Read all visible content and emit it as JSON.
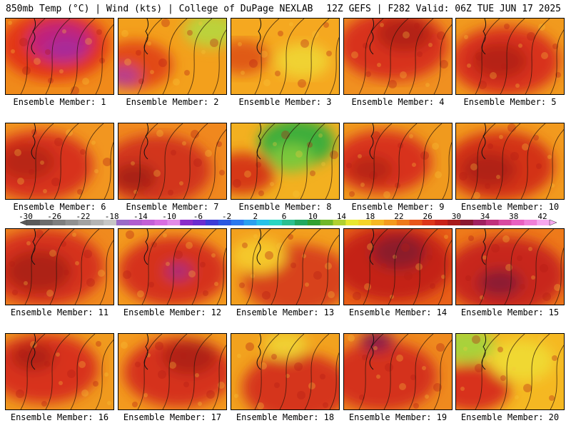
{
  "header": {
    "left": "850mb Temp (°C) | Wind (kts) | College of DuPage NEXLAB",
    "right": "12Z GEFS | F282 Valid: 06Z TUE JUN 17 2025"
  },
  "members": [
    {
      "label": "Ensemble Member: 1",
      "base": "#f08a1a",
      "blobs": [
        [
          "#e23512",
          0.45,
          0.35,
          0.5
        ],
        [
          "#c0247c",
          0.5,
          0.3,
          0.3
        ],
        [
          "#a82a9a",
          0.55,
          0.4,
          0.18
        ]
      ],
      "green": 0
    },
    {
      "label": "Ensemble Member: 2",
      "base": "#f3a01c",
      "blobs": [
        [
          "#e24a14",
          0.15,
          0.6,
          0.35
        ],
        [
          "#b73c8e",
          0.05,
          0.75,
          0.15
        ],
        [
          "#bcd23a",
          0.85,
          0.15,
          0.25
        ]
      ],
      "green": 0
    },
    {
      "label": "Ensemble Member: 3",
      "base": "#f5a820",
      "blobs": [
        [
          "#e05a14",
          0.1,
          0.5,
          0.25
        ],
        [
          "#f0d232",
          0.65,
          0.55,
          0.25
        ]
      ],
      "green": 0
    },
    {
      "label": "Ensemble Member: 4",
      "base": "#f09020",
      "blobs": [
        [
          "#d8301a",
          0.45,
          0.35,
          0.5
        ],
        [
          "#b32016",
          0.55,
          0.2,
          0.25
        ]
      ],
      "green": 0
    },
    {
      "label": "Ensemble Member: 5",
      "base": "#f19a1e",
      "blobs": [
        [
          "#d8331a",
          0.45,
          0.55,
          0.5
        ],
        [
          "#b52218",
          0.4,
          0.55,
          0.25
        ]
      ],
      "green": 0
    },
    {
      "label": "Ensemble Member: 6",
      "base": "#f29620",
      "blobs": [
        [
          "#d7331a",
          0.3,
          0.55,
          0.5
        ],
        [
          "#b82619",
          0.2,
          0.5,
          0.25
        ]
      ],
      "green": 0
    },
    {
      "label": "Ensemble Member: 7",
      "base": "#f0881e",
      "blobs": [
        [
          "#d2361a",
          0.35,
          0.6,
          0.5
        ],
        [
          "#a82014",
          0.15,
          0.7,
          0.2
        ]
      ],
      "green": 0
    },
    {
      "label": "Ensemble Member: 8",
      "base": "#f3b020",
      "blobs": [
        [
          "#d63818",
          0.1,
          0.65,
          0.3
        ],
        [
          "#3cae3a",
          0.6,
          0.25,
          0.35
        ],
        [
          "#7cc83a",
          0.55,
          0.45,
          0.2
        ]
      ],
      "green": 1
    },
    {
      "label": "Ensemble Member: 9",
      "base": "#f09a1e",
      "blobs": [
        [
          "#d8301a",
          0.35,
          0.5,
          0.45
        ],
        [
          "#b82818",
          0.25,
          0.6,
          0.2
        ]
      ],
      "green": 0
    },
    {
      "label": "Ensemble Member: 10",
      "base": "#f29a1e",
      "blobs": [
        [
          "#d33218",
          0.4,
          0.55,
          0.5
        ],
        [
          "#b02216",
          0.3,
          0.6,
          0.25
        ]
      ],
      "green": 0
    },
    {
      "label": "Ensemble Member: 11",
      "base": "#f08a1e",
      "blobs": [
        [
          "#d5331a",
          0.35,
          0.5,
          0.55
        ],
        [
          "#ad2218",
          0.3,
          0.55,
          0.3
        ]
      ],
      "green": 0
    },
    {
      "label": "Ensemble Member: 12",
      "base": "#f39a1e",
      "blobs": [
        [
          "#d5331a",
          0.5,
          0.55,
          0.5
        ],
        [
          "#a82a7a",
          0.55,
          0.55,
          0.12
        ]
      ],
      "green": 0
    },
    {
      "label": "Ensemble Member: 13",
      "base": "#f3a01e",
      "blobs": [
        [
          "#d8421a",
          0.6,
          0.65,
          0.5
        ],
        [
          "#f5c82a",
          0.25,
          0.35,
          0.25
        ]
      ],
      "green": 0
    },
    {
      "label": "Ensemble Member: 14",
      "base": "#e86018",
      "blobs": [
        [
          "#c42418",
          0.45,
          0.45,
          0.55
        ],
        [
          "#8c1c2a",
          0.5,
          0.3,
          0.25
        ]
      ],
      "green": 0
    },
    {
      "label": "Ensemble Member: 15",
      "base": "#ee7a1a",
      "blobs": [
        [
          "#c8261a",
          0.45,
          0.6,
          0.55
        ],
        [
          "#8c1a30",
          0.4,
          0.7,
          0.2
        ]
      ],
      "green": 0
    },
    {
      "label": "Ensemble Member: 16",
      "base": "#f09a1e",
      "blobs": [
        [
          "#d8331a",
          0.35,
          0.45,
          0.5
        ],
        [
          "#b02418",
          0.25,
          0.3,
          0.2
        ]
      ],
      "green": 0
    },
    {
      "label": "Ensemble Member: 17",
      "base": "#f39a1e",
      "blobs": [
        [
          "#d5331a",
          0.55,
          0.5,
          0.5
        ],
        [
          "#b02016",
          0.65,
          0.3,
          0.25
        ]
      ],
      "green": 0
    },
    {
      "label": "Ensemble Member: 18",
      "base": "#f2a21e",
      "blobs": [
        [
          "#d5361a",
          0.6,
          0.7,
          0.5
        ],
        [
          "#f0d030",
          0.5,
          0.15,
          0.2
        ]
      ],
      "green": 0
    },
    {
      "label": "Ensemble Member: 19",
      "base": "#ef8a1e",
      "blobs": [
        [
          "#d4301a",
          0.35,
          0.55,
          0.5
        ],
        [
          "#8a1c4a",
          0.3,
          0.1,
          0.15
        ]
      ],
      "green": 0
    },
    {
      "label": "Ensemble Member: 20",
      "base": "#f5b822",
      "blobs": [
        [
          "#d8331a",
          0.15,
          0.7,
          0.35
        ],
        [
          "#a8d23a",
          0.1,
          0.15,
          0.25
        ],
        [
          "#f0d830",
          0.6,
          0.35,
          0.3
        ]
      ],
      "green": 0
    }
  ],
  "colorbar": {
    "labels": [
      "-30",
      "-26",
      "-22",
      "-18",
      "-14",
      "-10",
      "-6",
      "-2",
      "2",
      "6",
      "10",
      "14",
      "18",
      "22",
      "26",
      "30",
      "34",
      "38",
      "42"
    ],
    "colors": [
      "#5a5a5a",
      "#6c6c6c",
      "#7e7e7e",
      "#909090",
      "#a2a2a2",
      "#b4b4b4",
      "#c6c6c6",
      "#9a6bc7",
      "#b05ccf",
      "#c35fd6",
      "#d86ee0",
      "#e28be8",
      "#8a2cc9",
      "#6a2ccf",
      "#3b3bd6",
      "#2a58e0",
      "#2a78ee",
      "#2aa0ee",
      "#28c2e8",
      "#2ad6c2",
      "#2ac090",
      "#20a860",
      "#30a030",
      "#70b828",
      "#b0d030",
      "#e8e830",
      "#f5d42a",
      "#f5b822",
      "#f39a1e",
      "#ee7a1a",
      "#e8561a",
      "#dd361a",
      "#c82218",
      "#a81a1a",
      "#8a1830",
      "#a02060",
      "#c0307c",
      "#d848a0",
      "#e860c0",
      "#f080d8",
      "#f6a8ee"
    ]
  }
}
